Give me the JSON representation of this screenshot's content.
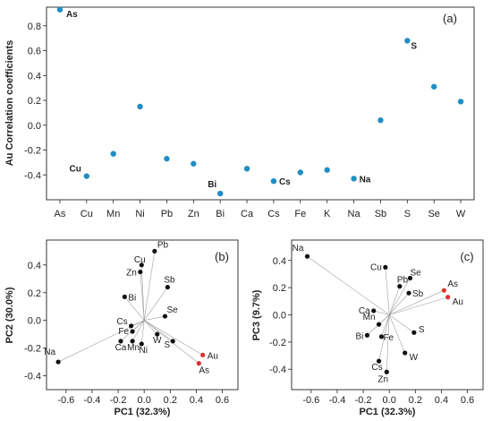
{
  "chart_data": [
    {
      "type": "scatter",
      "panel_label": "(a)",
      "ylabel": "Au Correlation coefficients",
      "categories": [
        "As",
        "Cu",
        "Mn",
        "Ni",
        "Pb",
        "Zn",
        "Bi",
        "Ca",
        "Cs",
        "Fe",
        "K",
        "Na",
        "Sb",
        "S",
        "Se",
        "W"
      ],
      "values": [
        0.93,
        -0.41,
        -0.23,
        0.15,
        -0.27,
        -0.31,
        -0.55,
        -0.35,
        -0.45,
        -0.38,
        -0.36,
        -0.43,
        0.04,
        0.68,
        0.31,
        0.19
      ],
      "annotated": [
        "As",
        "Cu",
        "Bi",
        "Cs",
        "Na",
        "S"
      ],
      "ylim": [
        -0.6,
        0.95
      ],
      "yticks": [
        "0.8",
        "0.6",
        "0.4",
        "0.2",
        "0.0",
        "-0.2",
        "-0.4"
      ],
      "colors": {
        "point": "#1f8ec4"
      },
      "grid": false
    },
    {
      "type": "scatter",
      "panel_label": "(b)",
      "xlabel": "PC1 (32.3%)",
      "ylabel": "PC2 (30.0%)",
      "xlim": [
        -0.75,
        0.72
      ],
      "ylim": [
        -0.5,
        0.58
      ],
      "xticks": [
        "-0.6",
        "-0.4",
        "-0.2",
        "0.0",
        "0.2",
        "0.4",
        "0.6"
      ],
      "yticks": [
        "0.4",
        "0.2",
        "0.0",
        "-0.2",
        "-0.4"
      ],
      "points": [
        {
          "label": "Pb",
          "x": 0.08,
          "y": 0.5,
          "highlight": false
        },
        {
          "label": "Cu",
          "x": -0.02,
          "y": 0.4,
          "highlight": false
        },
        {
          "label": "Zn",
          "x": -0.03,
          "y": 0.35,
          "highlight": false
        },
        {
          "label": "Sb",
          "x": 0.18,
          "y": 0.24,
          "highlight": false
        },
        {
          "label": "Bi",
          "x": -0.15,
          "y": 0.17,
          "highlight": false
        },
        {
          "label": "Se",
          "x": 0.16,
          "y": 0.03,
          "highlight": false
        },
        {
          "label": "Cs",
          "x": -0.1,
          "y": -0.04,
          "highlight": false
        },
        {
          "label": "Fe",
          "x": -0.09,
          "y": -0.08,
          "highlight": false
        },
        {
          "label": "W",
          "x": 0.1,
          "y": -0.1,
          "highlight": false
        },
        {
          "label": "S",
          "x": 0.22,
          "y": -0.15,
          "highlight": false
        },
        {
          "label": "Ca",
          "x": -0.18,
          "y": -0.15,
          "highlight": false
        },
        {
          "label": "Mn",
          "x": -0.09,
          "y": -0.15,
          "highlight": false
        },
        {
          "label": "Ni",
          "x": -0.02,
          "y": -0.17,
          "highlight": false
        },
        {
          "label": "Na",
          "x": -0.66,
          "y": -0.3,
          "highlight": false
        },
        {
          "label": "Au",
          "x": 0.45,
          "y": -0.25,
          "highlight": true
        },
        {
          "label": "As",
          "x": 0.42,
          "y": -0.31,
          "highlight": true
        }
      ],
      "colors": {
        "point": "#111111",
        "highlight": "#e0322e",
        "line": "#a0a0a0"
      }
    },
    {
      "type": "scatter",
      "panel_label": "(c)",
      "xlabel": "PC1 (32.3%)",
      "ylabel": "PC3 (9.7%)",
      "xlim": [
        -0.75,
        0.72
      ],
      "ylim": [
        -0.55,
        0.55
      ],
      "xticks": [
        "-0.6",
        "-0.4",
        "-0.2",
        "0.0",
        "0.2",
        "0.4",
        "0.6"
      ],
      "yticks": [
        "0.4",
        "0.2",
        "0.0",
        "-0.2",
        "-0.4"
      ],
      "points": [
        {
          "label": "Na",
          "x": -0.63,
          "y": 0.43,
          "highlight": false
        },
        {
          "label": "Cu",
          "x": -0.03,
          "y": 0.35,
          "highlight": false
        },
        {
          "label": "Se",
          "x": 0.16,
          "y": 0.27,
          "highlight": false
        },
        {
          "label": "Pb",
          "x": 0.08,
          "y": 0.21,
          "highlight": false
        },
        {
          "label": "Sb",
          "x": 0.15,
          "y": 0.16,
          "highlight": false
        },
        {
          "label": "Ca",
          "x": -0.12,
          "y": 0.03,
          "highlight": false
        },
        {
          "label": "Mn",
          "x": -0.08,
          "y": -0.07,
          "highlight": false
        },
        {
          "label": "Bi",
          "x": -0.17,
          "y": -0.15,
          "highlight": false
        },
        {
          "label": "Fe",
          "x": -0.06,
          "y": -0.16,
          "highlight": false
        },
        {
          "label": "S",
          "x": 0.19,
          "y": -0.13,
          "highlight": false
        },
        {
          "label": "W",
          "x": 0.12,
          "y": -0.28,
          "highlight": false
        },
        {
          "label": "Cs",
          "x": -0.08,
          "y": -0.34,
          "highlight": false
        },
        {
          "label": "Zn",
          "x": -0.02,
          "y": -0.42,
          "highlight": false
        },
        {
          "label": "As",
          "x": 0.42,
          "y": 0.18,
          "highlight": true
        },
        {
          "label": "Au",
          "x": 0.45,
          "y": 0.13,
          "highlight": true
        }
      ],
      "colors": {
        "point": "#111111",
        "highlight": "#e0322e",
        "line": "#a0a0a0"
      }
    }
  ]
}
